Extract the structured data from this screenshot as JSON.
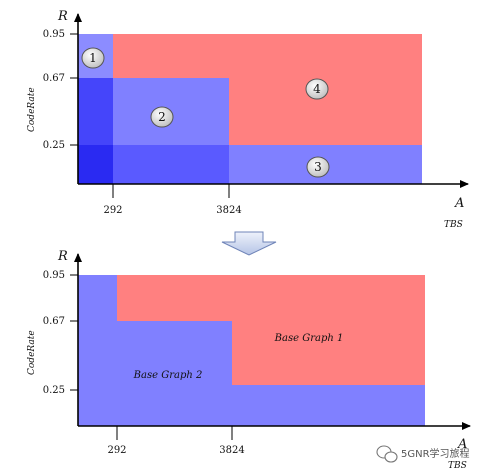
{
  "top_chart": {
    "y_symbol": "R",
    "y_name": "CodeRate",
    "x_symbol": "A",
    "x_name": "TBS",
    "y_ticks": [
      "0.95",
      "0.67",
      "0.25"
    ],
    "x_ticks": [
      "292",
      "3824"
    ],
    "regions": [
      "1",
      "2",
      "3",
      "4"
    ]
  },
  "transition_arrow": "down-arrow-icon",
  "bottom_chart": {
    "y_symbol": "R",
    "y_name": "CodeRate",
    "x_symbol": "A",
    "x_name": "TBS",
    "y_ticks": [
      "0.95",
      "0.67",
      "0.25"
    ],
    "x_ticks": [
      "292",
      "3824"
    ],
    "label_bg1": "Base Graph 1",
    "label_bg2": "Base Graph 2"
  },
  "watermark": {
    "text": "5GNR学习旅程",
    "icon": "wechat-icon"
  },
  "colors": {
    "red_region": "#ff8080",
    "blue_region": "#8080ff",
    "blue_dark": "#3535f5",
    "blue_mid": "#6b6bff",
    "axis": "#000000"
  }
}
